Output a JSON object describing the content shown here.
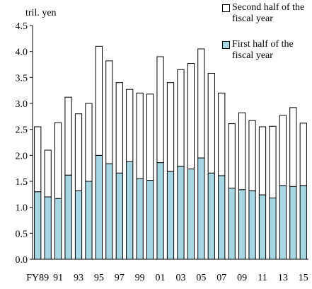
{
  "chart_data": {
    "type": "stacked_bar",
    "y_label": "tril. yen",
    "categories": [
      "FY89",
      null,
      "91",
      null,
      "93",
      null,
      "95",
      null,
      "97",
      null,
      "99",
      null,
      "01",
      null,
      "03",
      null,
      "05",
      null,
      "07",
      null,
      "09",
      null,
      "11",
      null,
      "13",
      null,
      "15"
    ],
    "series": [
      {
        "name": "First half of the fiscal year",
        "color": "#a6d7e2",
        "values": [
          1.3,
          1.2,
          1.17,
          1.62,
          1.32,
          1.5,
          2.0,
          1.84,
          1.66,
          1.88,
          1.55,
          1.52,
          1.86,
          1.69,
          1.79,
          1.74,
          1.95,
          1.66,
          1.61,
          1.37,
          1.34,
          1.32,
          1.24,
          1.18,
          1.42,
          1.4,
          1.42
        ]
      },
      {
        "name": "Second half of the fiscal year",
        "color": "#ffffff",
        "values": [
          1.25,
          0.9,
          1.46,
          1.5,
          1.48,
          1.5,
          2.1,
          1.98,
          1.74,
          1.39,
          1.65,
          1.66,
          2.04,
          1.71,
          1.86,
          2.03,
          2.1,
          1.92,
          1.59,
          1.24,
          1.48,
          1.35,
          1.31,
          1.38,
          1.35,
          1.52,
          1.2
        ]
      }
    ],
    "ylim": [
      0,
      4.5
    ],
    "yticks": [
      {
        "value": 0,
        "label": "0.0"
      },
      0.5,
      {
        "value": 1,
        "label": "1.0"
      },
      1.5,
      {
        "value": 2,
        "label": "2.0"
      },
      2.5,
      {
        "value": 3,
        "label": "3.0"
      },
      3.5,
      {
        "value": 4,
        "label": "4.0"
      },
      4.5
    ]
  }
}
